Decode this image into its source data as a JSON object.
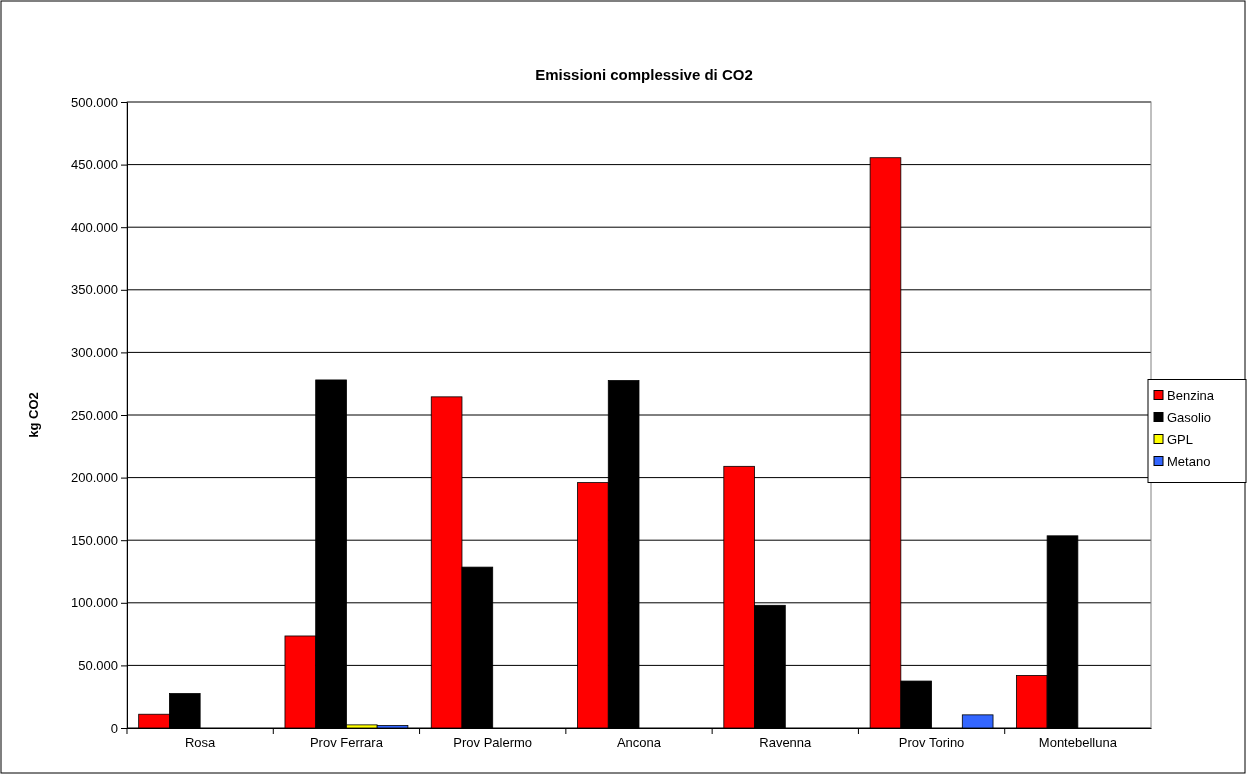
{
  "chart_data": {
    "type": "bar",
    "title": "Emissioni complessive di CO2",
    "ylabel": "kg CO2",
    "categories": [
      "Rosa",
      "Prov Ferrara",
      "Prov Palermo",
      "Ancona",
      "Ravenna",
      "Prov Torino",
      "Montebelluna"
    ],
    "series": [
      {
        "name": "Benzina",
        "color": "#ff0000",
        "values": [
          11000,
          73500,
          264500,
          196000,
          209000,
          455500,
          42000
        ]
      },
      {
        "name": "Gasolio",
        "color": "#000000",
        "values": [
          27500,
          278000,
          128500,
          277500,
          98000,
          37500,
          153500
        ]
      },
      {
        "name": "GPL",
        "color": "#ffff00",
        "values": [
          0,
          2500,
          0,
          0,
          0,
          0,
          0
        ]
      },
      {
        "name": "Metano",
        "color": "#3366ff",
        "values": [
          0,
          2000,
          0,
          0,
          0,
          10500,
          0
        ]
      }
    ],
    "ylim": [
      0,
      500000
    ],
    "yticks": [
      {
        "value": 0,
        "label": "0"
      },
      {
        "value": 50000,
        "label": "50.000"
      },
      {
        "value": 100000,
        "label": "100.000"
      },
      {
        "value": 150000,
        "label": "150.000"
      },
      {
        "value": 200000,
        "label": "200.000"
      },
      {
        "value": 250000,
        "label": "250.000"
      },
      {
        "value": 300000,
        "label": "300.000"
      },
      {
        "value": 350000,
        "label": "350.000"
      },
      {
        "value": 400000,
        "label": "400.000"
      },
      {
        "value": 450000,
        "label": "450.000"
      },
      {
        "value": 500000,
        "label": "500.000"
      }
    ],
    "grid": "y",
    "legend": "right"
  }
}
